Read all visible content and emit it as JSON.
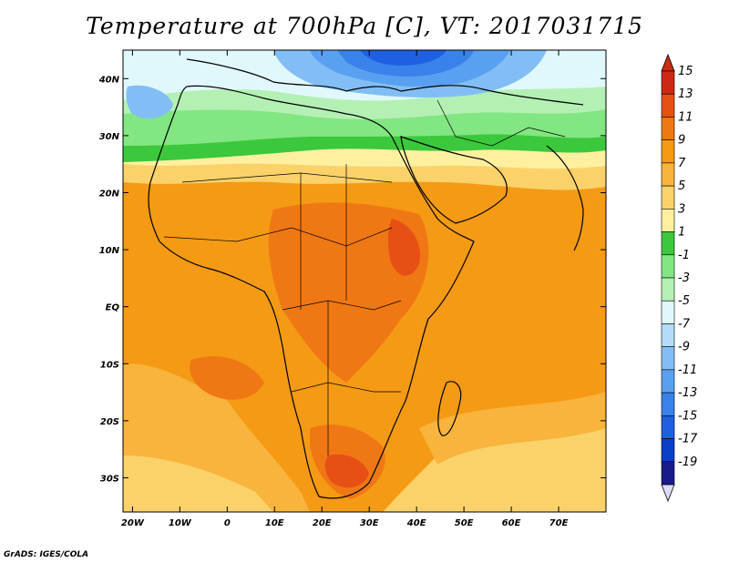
{
  "title": "Temperature at 700hPa [C], VT: 2017031715",
  "credit": "GrADS: IGES/COLA",
  "map": {
    "projection": "lat-lon",
    "lon_range": [
      -22,
      80
    ],
    "lat_range": [
      -36,
      45
    ],
    "lon_ticks": [
      {
        "value": -20,
        "label": "20W"
      },
      {
        "value": -10,
        "label": "10W"
      },
      {
        "value": 0,
        "label": "0"
      },
      {
        "value": 10,
        "label": "10E"
      },
      {
        "value": 20,
        "label": "20E"
      },
      {
        "value": 30,
        "label": "30E"
      },
      {
        "value": 40,
        "label": "40E"
      },
      {
        "value": 50,
        "label": "50E"
      },
      {
        "value": 60,
        "label": "60E"
      },
      {
        "value": 70,
        "label": "70E"
      }
    ],
    "lat_ticks": [
      {
        "value": 40,
        "label": "40N"
      },
      {
        "value": 30,
        "label": "30N"
      },
      {
        "value": 20,
        "label": "20N"
      },
      {
        "value": 10,
        "label": "10N"
      },
      {
        "value": 0,
        "label": "EQ"
      },
      {
        "value": -10,
        "label": "10S"
      },
      {
        "value": -20,
        "label": "20S"
      },
      {
        "value": -30,
        "label": "30S"
      }
    ]
  },
  "colorbar": {
    "colors": [
      "#1a1a8c",
      "#0a3fc8",
      "#1e60e0",
      "#3a82eb",
      "#5aa0f0",
      "#82bef5",
      "#b4dcfa",
      "#e0f8fc",
      "#b4f0b4",
      "#82e682",
      "#3cc83c",
      "#fff0a0",
      "#fbd26a",
      "#f8b43c",
      "#f59a14",
      "#f07814",
      "#e65014",
      "#cd2814"
    ],
    "labels": [
      "15",
      "13",
      "11",
      "9",
      "7",
      "5",
      "3",
      "1",
      "-1",
      "-3",
      "-5",
      "-7",
      "-9",
      "-11",
      "-13",
      "-15",
      "-17",
      "-19"
    ]
  }
}
